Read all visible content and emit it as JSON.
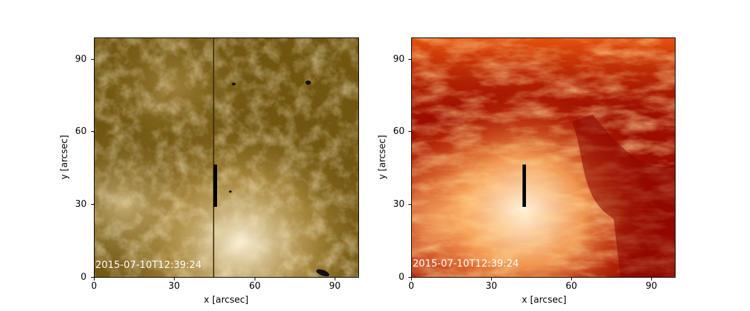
{
  "panels": [
    {
      "timestamp": "2015-07-10T12:39:24",
      "colormap": "sdoaia-brown",
      "colors": {
        "dark": "#3a2a05",
        "mid": "#7a6012",
        "light": "#fff8e8"
      },
      "xlabel": "x [arcsec]",
      "ylabel": "y [arcsec]",
      "xticks": [
        "0",
        "30",
        "60",
        "90"
      ],
      "yticks": [
        "0",
        "30",
        "60",
        "90"
      ],
      "slit_marker": {
        "x": 45,
        "y_from": 29,
        "y_to": 46
      }
    },
    {
      "timestamp": "2015-07-10T12:39:24",
      "colormap": "sdoaia-red",
      "colors": {
        "dark": "#8e0000",
        "mid": "#e84800",
        "light": "#fff4e0"
      },
      "xlabel": "x [arcsec]",
      "ylabel": "y [arcsec]",
      "xticks": [
        "0",
        "30",
        "60",
        "90"
      ],
      "yticks": [
        "0",
        "30",
        "60",
        "90"
      ],
      "slit_marker": {
        "x": 42,
        "y_from": 29,
        "y_to": 46
      }
    }
  ]
}
